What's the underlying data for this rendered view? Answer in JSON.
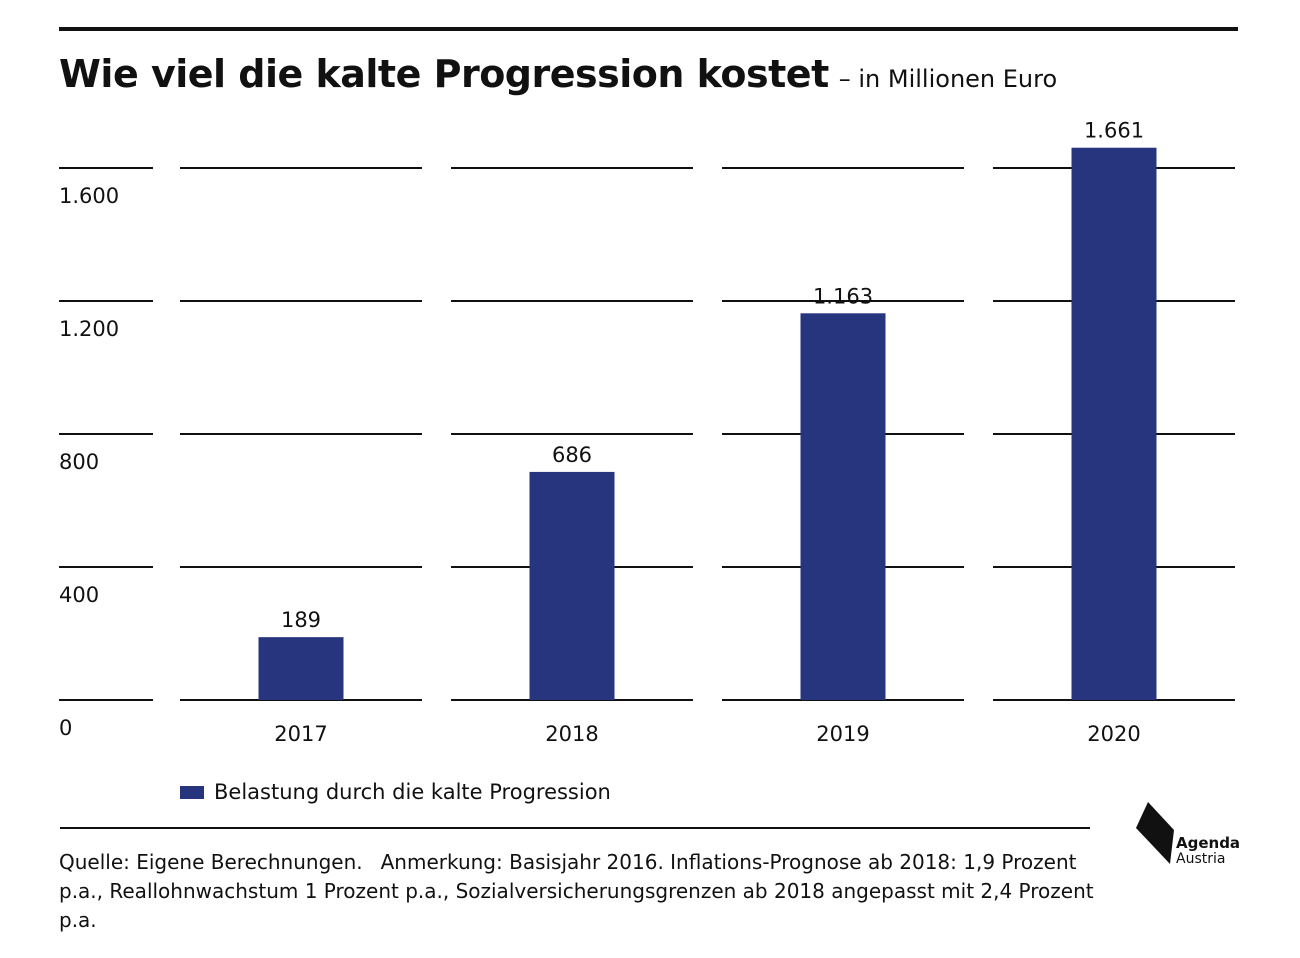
{
  "title": "Wie viel die kalte Progression kostet",
  "subtitle": "– in Millionen Euro",
  "legend": "Belastung durch die kalte Progression",
  "source_label": "Quelle: Eigene Berechnungen.",
  "note": "Anmerkung: Basisjahr 2016. Inflations-Prognose ab 2018: 1,9 Prozent p.a., Reallohnwachstum 1 Prozent p.a., Sozialversicherungsgrenzen ab 2018 angepasst mit 2,4 Prozent p.a.",
  "logo": {
    "line1": "Agenda",
    "line2": "Austria"
  },
  "colors": {
    "bar": "#27347e",
    "grid": "#111111"
  },
  "chart_data": {
    "type": "bar",
    "categories": [
      "2017",
      "2018",
      "2019",
      "2020"
    ],
    "values": [
      189,
      686,
      1163,
      1661
    ],
    "data_labels": [
      "189",
      "686",
      "1.163",
      "1.661"
    ],
    "ylim": [
      0,
      1600
    ],
    "yticks": [
      0,
      400,
      800,
      1200,
      1600
    ],
    "ytick_labels": [
      "0",
      "400",
      "800",
      "1.200",
      "1.600"
    ],
    "grid": true,
    "legend_position": "bottom-left"
  }
}
